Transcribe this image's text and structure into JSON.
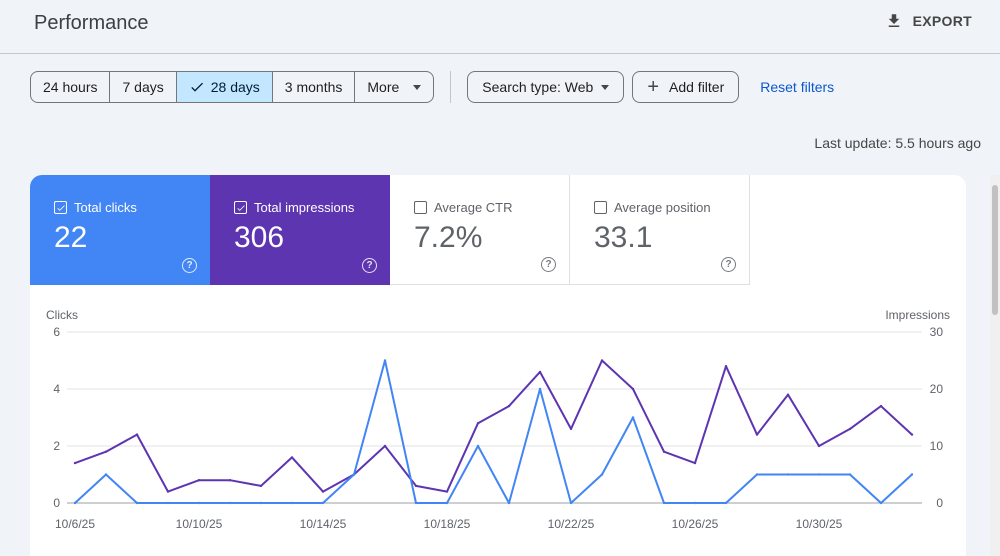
{
  "header": {
    "title": "Performance",
    "export_label": "EXPORT"
  },
  "filters": {
    "date_ranges": [
      "24 hours",
      "7 days",
      "28 days",
      "3 months",
      "More"
    ],
    "active_range": "28 days",
    "search_type": "Search type: Web",
    "add_filter": "Add filter",
    "reset": "Reset filters"
  },
  "last_update": "Last update: 5.5 hours ago",
  "metrics": [
    {
      "label": "Total clicks",
      "value": "22",
      "checked": true
    },
    {
      "label": "Total impressions",
      "value": "306",
      "checked": true
    },
    {
      "label": "Average CTR",
      "value": "7.2%",
      "checked": false
    },
    {
      "label": "Average position",
      "value": "33.1",
      "checked": false
    }
  ],
  "colors": {
    "clicks": "#4285f4",
    "impressions": "#5e35b1",
    "active_range": "#c2e7ff",
    "link": "#0b57d0"
  },
  "chart_data": {
    "type": "line",
    "xlabel": "",
    "y_left_label": "Clicks",
    "y_right_label": "Impressions",
    "y_left_range": [
      0,
      6
    ],
    "y_right_range": [
      0,
      30
    ],
    "y_left_ticks": [
      0,
      2,
      4,
      6
    ],
    "y_right_ticks": [
      0,
      10,
      20,
      30
    ],
    "x_tick_labels": [
      "10/6/25",
      "10/10/25",
      "10/14/25",
      "10/18/25",
      "10/22/25",
      "10/26/25",
      "10/30/25"
    ],
    "x": [
      "10/6/25",
      "10/7/25",
      "10/8/25",
      "10/9/25",
      "10/10/25",
      "10/11/25",
      "10/12/25",
      "10/13/25",
      "10/14/25",
      "10/15/25",
      "10/16/25",
      "10/17/25",
      "10/18/25",
      "10/19/25",
      "10/20/25",
      "10/21/25",
      "10/22/25",
      "10/23/25",
      "10/24/25",
      "10/25/25",
      "10/26/25",
      "10/27/25",
      "10/28/25",
      "10/29/25",
      "10/30/25",
      "10/31/25",
      "11/1/25",
      "11/2/25"
    ],
    "series": [
      {
        "name": "Clicks",
        "axis": "left",
        "values": [
          0,
          1,
          0,
          0,
          0,
          0,
          0,
          0,
          0,
          1,
          5,
          0,
          0,
          2,
          0,
          4,
          0,
          1,
          3,
          0,
          0,
          0,
          1,
          1,
          1,
          1,
          0,
          1
        ]
      },
      {
        "name": "Impressions",
        "axis": "right",
        "values": [
          7,
          9,
          12,
          2,
          4,
          4,
          3,
          8,
          2,
          5,
          10,
          3,
          2,
          14,
          17,
          23,
          13,
          25,
          20,
          9,
          7,
          24,
          12,
          19,
          10,
          13,
          17,
          12
        ]
      }
    ],
    "grid": true
  }
}
